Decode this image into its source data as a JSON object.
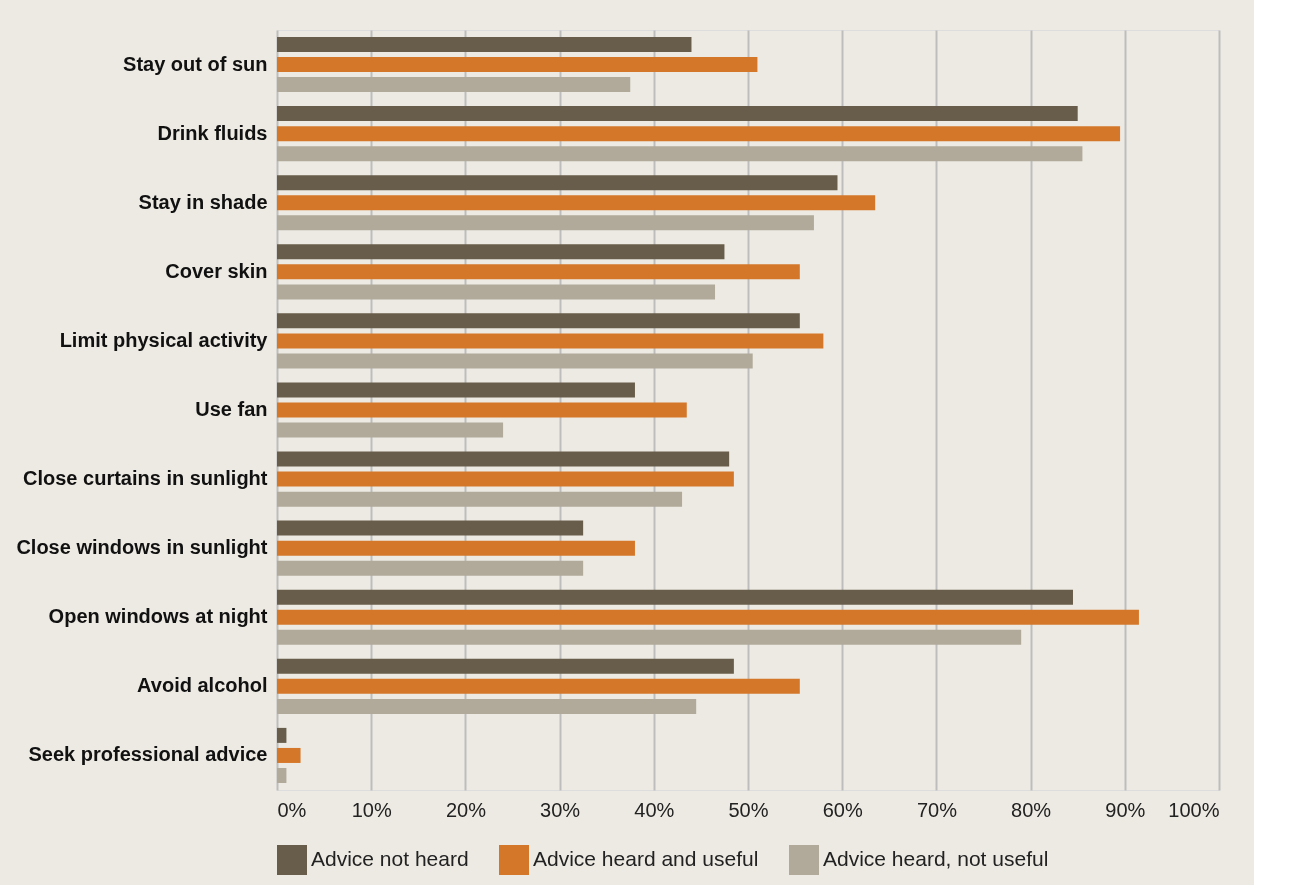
{
  "chart_data": {
    "type": "bar",
    "orientation": "horizontal",
    "categories": [
      "Stay out of sun",
      "Drink fluids",
      "Stay in shade",
      "Cover skin",
      "Limit physical activity",
      "Use fan",
      "Close curtains in sunlight",
      "Close windows in sunlight",
      "Open windows at night",
      "Avoid alcohol",
      "Seek professional advice"
    ],
    "series": [
      {
        "name": "Advice not heard",
        "color": "#685d4a",
        "values": [
          44,
          85,
          59.5,
          47.5,
          55.5,
          38,
          48,
          32.5,
          84.5,
          48.5,
          1
        ]
      },
      {
        "name": "Advice heard and useful",
        "color": "#d57728",
        "values": [
          51,
          89.5,
          63.5,
          55.5,
          58,
          43.5,
          48.5,
          38,
          91.5,
          55.5,
          2.5
        ]
      },
      {
        "name": "Advice heard, not useful",
        "color": "#b1aa9b",
        "values": [
          37.5,
          85.5,
          57,
          46.5,
          50.5,
          24,
          43,
          32.5,
          79,
          44.5,
          1
        ]
      }
    ],
    "xlim": [
      0,
      100
    ],
    "xticks": [
      {
        "value": 0,
        "label": "0%"
      },
      {
        "value": 10,
        "label": "10%"
      },
      {
        "value": 20,
        "label": "20%"
      },
      {
        "value": 30,
        "label": "30%"
      },
      {
        "value": 40,
        "label": "40%"
      },
      {
        "value": 50,
        "label": "50%"
      },
      {
        "value": 60,
        "label": "60%"
      },
      {
        "value": 70,
        "label": "70%"
      },
      {
        "value": 80,
        "label": "80%"
      },
      {
        "value": 90,
        "label": "90%"
      },
      {
        "value": 100,
        "label": "100%"
      }
    ],
    "grid": "x",
    "legend": "bottom left"
  }
}
